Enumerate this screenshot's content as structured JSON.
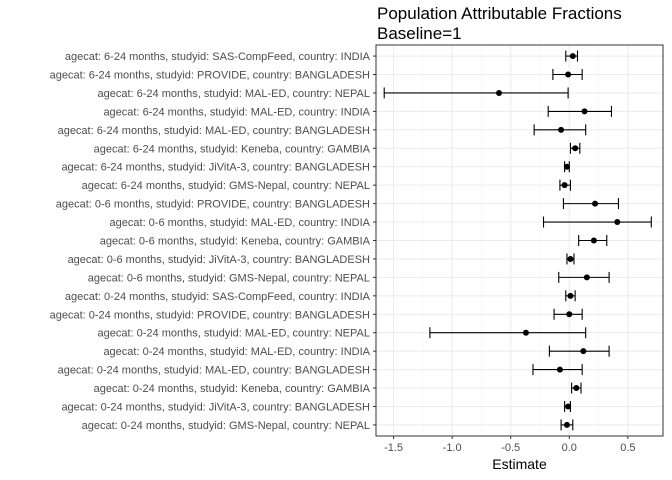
{
  "chart_data": {
    "type": "scatter",
    "title": "Population Attributable Fractions",
    "subtitle": "Baseline=1",
    "xlabel": "Estimate",
    "ylabel": "",
    "xlim": [
      -1.65,
      0.8
    ],
    "xticks": [
      -1.5,
      -1.0,
      -0.5,
      0.0,
      0.5
    ],
    "xtick_labels": [
      "-1.5",
      "-1.0",
      "-0.5",
      "0.0",
      "0.5"
    ],
    "grid": true,
    "rows": [
      {
        "label": "agecat: 6-24 months, studyid: SAS-CompFeed, country: INDIA",
        "estimate": 0.03,
        "lower": -0.03,
        "upper": 0.07
      },
      {
        "label": "agecat: 6-24 months, studyid: PROVIDE, country: BANGLADESH",
        "estimate": -0.01,
        "lower": -0.14,
        "upper": 0.11
      },
      {
        "label": "agecat: 6-24 months, studyid: MAL-ED, country: NEPAL",
        "estimate": -0.6,
        "lower": -1.58,
        "upper": -0.01
      },
      {
        "label": "agecat: 6-24 months, studyid: MAL-ED, country: INDIA",
        "estimate": 0.13,
        "lower": -0.18,
        "upper": 0.36
      },
      {
        "label": "agecat: 6-24 months, studyid: MAL-ED, country: BANGLADESH",
        "estimate": -0.07,
        "lower": -0.3,
        "upper": 0.14
      },
      {
        "label": "agecat: 6-24 months, studyid: Keneba, country: GAMBIA",
        "estimate": 0.05,
        "lower": 0.01,
        "upper": 0.09
      },
      {
        "label": "agecat: 6-24 months, studyid: JiVitA-3, country: BANGLADESH",
        "estimate": -0.02,
        "lower": -0.04,
        "upper": 0.0
      },
      {
        "label": "agecat: 6-24 months, studyid: GMS-Nepal, country: NEPAL",
        "estimate": -0.04,
        "lower": -0.08,
        "upper": 0.01
      },
      {
        "label": "agecat: 0-6 months, studyid: PROVIDE, country: BANGLADESH",
        "estimate": 0.22,
        "lower": -0.05,
        "upper": 0.42
      },
      {
        "label": "agecat: 0-6 months, studyid: MAL-ED, country: INDIA",
        "estimate": 0.41,
        "lower": -0.22,
        "upper": 0.7
      },
      {
        "label": "agecat: 0-6 months, studyid: Keneba, country: GAMBIA",
        "estimate": 0.21,
        "lower": 0.08,
        "upper": 0.32
      },
      {
        "label": "agecat: 0-6 months, studyid: JiVitA-3, country: BANGLADESH",
        "estimate": 0.01,
        "lower": -0.02,
        "upper": 0.04
      },
      {
        "label": "agecat: 0-6 months, studyid: GMS-Nepal, country: NEPAL",
        "estimate": 0.15,
        "lower": -0.09,
        "upper": 0.34
      },
      {
        "label": "agecat: 0-24 months, studyid: SAS-CompFeed, country: INDIA",
        "estimate": 0.01,
        "lower": -0.03,
        "upper": 0.05
      },
      {
        "label": "agecat: 0-24 months, studyid: PROVIDE, country: BANGLADESH",
        "estimate": 0.0,
        "lower": -0.13,
        "upper": 0.11
      },
      {
        "label": "agecat: 0-24 months, studyid: MAL-ED, country: NEPAL",
        "estimate": -0.37,
        "lower": -1.19,
        "upper": 0.14
      },
      {
        "label": "agecat: 0-24 months, studyid: MAL-ED, country: INDIA",
        "estimate": 0.12,
        "lower": -0.17,
        "upper": 0.34
      },
      {
        "label": "agecat: 0-24 months, studyid: MAL-ED, country: BANGLADESH",
        "estimate": -0.08,
        "lower": -0.31,
        "upper": 0.11
      },
      {
        "label": "agecat: 0-24 months, studyid: Keneba, country: GAMBIA",
        "estimate": 0.06,
        "lower": 0.02,
        "upper": 0.1
      },
      {
        "label": "agecat: 0-24 months, studyid: JiVitA-3, country: BANGLADESH",
        "estimate": -0.01,
        "lower": -0.04,
        "upper": 0.01
      },
      {
        "label": "agecat: 0-24 months, studyid: GMS-Nepal, country: NEPAL",
        "estimate": -0.02,
        "lower": -0.07,
        "upper": 0.03
      }
    ],
    "colors": {
      "point": "#000000",
      "errorbar": "#000000",
      "panel_border": "#333333",
      "grid_major": "#ebebeb",
      "grid_minor": "#f5f5f5"
    }
  }
}
